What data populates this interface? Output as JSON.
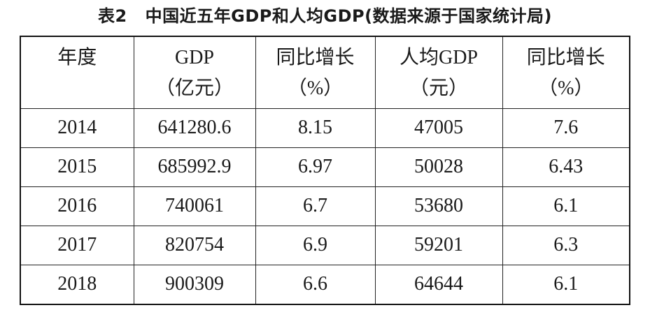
{
  "caption": {
    "label": "表2",
    "title": "中国近五年GDP和人均GDP(数据来源于国家统计局)"
  },
  "table": {
    "headers": [
      {
        "name": "年度",
        "unit": ""
      },
      {
        "name": "GDP",
        "unit": "（亿元）"
      },
      {
        "name": "同比增长",
        "unit": "（%）"
      },
      {
        "name": "人均GDP",
        "unit": "（元）"
      },
      {
        "name": "同比增长",
        "unit": "（%）"
      }
    ],
    "rows": [
      [
        "2014",
        "641280.6",
        "8.15",
        "47005",
        "7.6"
      ],
      [
        "2015",
        "685992.9",
        "6.97",
        "50028",
        "6.43"
      ],
      [
        "2016",
        "740061",
        "6.7",
        "53680",
        "6.1"
      ],
      [
        "2017",
        "820754",
        "6.9",
        "59201",
        "6.3"
      ],
      [
        "2018",
        "900309",
        "6.6",
        "64644",
        "6.1"
      ]
    ]
  }
}
